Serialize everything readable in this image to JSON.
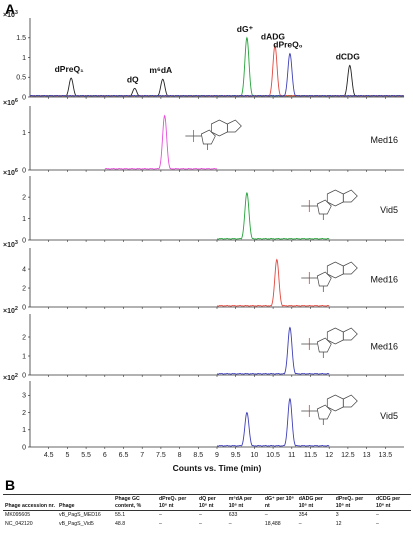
{
  "figure": {
    "panel_a": "A",
    "panel_b": "B",
    "x_axis_title": "Counts vs. Time (min)",
    "x_ticks": [
      "4.5",
      "5",
      "5.5",
      "6",
      "6.5",
      "7",
      "7.5",
      "8",
      "8.5",
      "9",
      "9.5",
      "10",
      "10.5",
      "11",
      "11.5",
      "12",
      "12.5",
      "13",
      "13.5"
    ]
  },
  "colors": {
    "black": "#222222",
    "magenta": "#e64fd9",
    "green": "#26a33b",
    "red": "#e2483f",
    "blue": "#3e3fb8"
  },
  "chart_data": [
    {
      "type": "line",
      "exponent": "x10^3",
      "y_ticks": [
        "0",
        "0.5",
        "1",
        "1.5"
      ],
      "ylim": [
        0,
        1.9
      ],
      "series": [
        {
          "color": "black",
          "peaks": [
            [
              5.1,
              0.48
            ],
            [
              6.8,
              0.22
            ],
            [
              7.55,
              0.45
            ],
            [
              12.55,
              0.8
            ]
          ]
        },
        {
          "color": "green",
          "peaks": [
            [
              9.8,
              1.5
            ]
          ]
        },
        {
          "color": "red",
          "peaks": [
            [
              10.55,
              1.3
            ]
          ]
        },
        {
          "color": "blue",
          "peaks": [
            [
              10.95,
              1.1
            ]
          ]
        }
      ],
      "annotations": [
        {
          "label": "dPreQ₁",
          "x": 5.1
        },
        {
          "label": "dQ",
          "x": 6.8
        },
        {
          "label": "m⁶dA",
          "x": 7.55
        },
        {
          "label": "dG⁺",
          "x": 9.8
        },
        {
          "label": "dADG",
          "x": 10.55
        },
        {
          "label": "dPreQ₀",
          "x": 10.95
        },
        {
          "label": "dCDG",
          "x": 12.55
        }
      ]
    },
    {
      "type": "line",
      "exponent": "x10^6",
      "y_ticks": [
        "0",
        "1"
      ],
      "ylim": [
        0,
        1.6
      ],
      "panel_label": "Med16",
      "xlim": [
        6.0,
        9.0
      ],
      "series": [
        {
          "color": "magenta",
          "peaks": [
            [
              7.6,
              1.45
            ]
          ]
        }
      ]
    },
    {
      "type": "line",
      "exponent": "x10^6",
      "y_ticks": [
        "0",
        "1",
        "2"
      ],
      "ylim": [
        0,
        2.8
      ],
      "panel_label": "Vid5",
      "xlim": [
        9.0,
        12.0
      ],
      "series": [
        {
          "color": "green",
          "peaks": [
            [
              9.8,
              2.2
            ]
          ]
        }
      ]
    },
    {
      "type": "line",
      "exponent": "x10^3",
      "y_ticks": [
        "0",
        "2",
        "4"
      ],
      "ylim": [
        0,
        5.8
      ],
      "panel_label": "Med16",
      "xlim": [
        9.0,
        12.0
      ],
      "series": [
        {
          "color": "red",
          "peaks": [
            [
              10.6,
              5.0
            ]
          ]
        }
      ]
    },
    {
      "type": "line",
      "exponent": "x10^2",
      "y_ticks": [
        "0",
        "1",
        "2"
      ],
      "ylim": [
        0,
        3.0
      ],
      "panel_label": "Med16",
      "xlim": [
        9.0,
        12.0
      ],
      "series": [
        {
          "color": "blue",
          "peaks": [
            [
              10.95,
              2.5
            ]
          ]
        }
      ]
    },
    {
      "type": "line",
      "exponent": "x10^2",
      "y_ticks": [
        "0",
        "1",
        "2",
        "3"
      ],
      "ylim": [
        0,
        3.6
      ],
      "panel_label": "Vid5",
      "xlim": [
        9.0,
        12.0
      ],
      "series": [
        {
          "color": "blue",
          "peaks": [
            [
              9.8,
              2.0
            ],
            [
              10.95,
              2.8
            ]
          ]
        }
      ]
    }
  ],
  "table": {
    "headers": [
      "Phage accession nr.",
      "Phage",
      "Phage GC content, %",
      "dPreQ₁ per 10⁶ nt",
      "dQ per 10⁶ nt",
      "m⁶dA per 10⁶ nt",
      "dG⁺ per 10⁶ nt",
      "dADG per 10⁶ nt",
      "dPreQ₀ per 10⁶ nt",
      "dCDG per 10⁶ nt"
    ],
    "rows": [
      [
        "MK095605",
        "vB_PagS_MED16",
        "55.1",
        "–",
        "–",
        "633",
        "–",
        "354",
        "3",
        "–"
      ],
      [
        "NC_042120",
        "vB_PagS_Vid5",
        "48.8",
        "–",
        "–",
        "–",
        "18,488",
        "–",
        "12",
        "–"
      ]
    ]
  }
}
